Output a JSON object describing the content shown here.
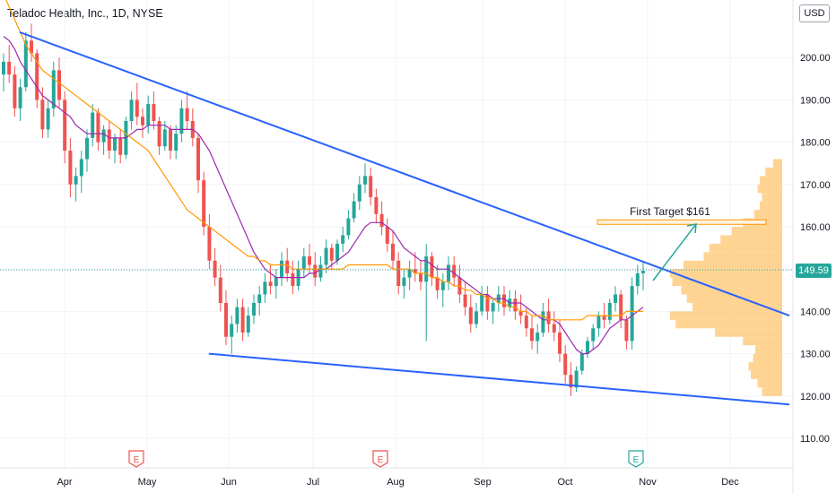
{
  "title": "Teladoc Health, Inc., 1D, NYSE",
  "currency_button": "USD",
  "last_price": "149.59",
  "annotation": "First Target $161",
  "earnings_marker": "E",
  "colors": {
    "up": "#26a69a",
    "down": "#ef5350",
    "trendline": "#2962ff",
    "ma_fast": "#9c27b0",
    "ma_slow": "#ff9800",
    "volume_profile": "#ffcc80",
    "target_box": "#ff9800",
    "arrow": "#26a69a"
  },
  "chart_data": {
    "type": "candlestick",
    "title": "Teladoc Health, Inc., 1D, NYSE",
    "x_ticks": [
      "Apr",
      "May",
      "Jun",
      "Jul",
      "Aug",
      "Sep",
      "Oct",
      "Nov",
      "Dec"
    ],
    "y_ticks": [
      110,
      120,
      130,
      140,
      150,
      160,
      170,
      180,
      190,
      200
    ],
    "ylim": [
      103,
      211
    ],
    "y_axis_side": "right",
    "price_line": 149.59,
    "candles": [
      [
        196,
        201,
        192,
        199
      ],
      [
        199,
        203,
        194,
        196
      ],
      [
        196,
        198,
        186,
        188
      ],
      [
        188,
        195,
        185,
        193
      ],
      [
        193,
        206,
        192,
        204
      ],
      [
        204,
        208,
        199,
        201
      ],
      [
        201,
        202,
        188,
        190
      ],
      [
        190,
        193,
        181,
        183
      ],
      [
        183,
        190,
        181,
        188
      ],
      [
        188,
        199,
        186,
        197
      ],
      [
        197,
        200,
        188,
        190
      ],
      [
        190,
        192,
        175,
        178
      ],
      [
        178,
        181,
        167,
        170
      ],
      [
        170,
        174,
        166,
        172
      ],
      [
        172,
        178,
        168,
        176
      ],
      [
        176,
        183,
        173,
        181
      ],
      [
        181,
        189,
        179,
        187
      ],
      [
        187,
        188,
        178,
        180
      ],
      [
        180,
        184,
        177,
        183
      ],
      [
        183,
        185,
        176,
        178
      ],
      [
        178,
        182,
        175,
        181
      ],
      [
        181,
        183,
        175,
        177
      ],
      [
        177,
        186,
        176,
        185
      ],
      [
        185,
        192,
        183,
        190
      ],
      [
        190,
        194,
        184,
        186
      ],
      [
        186,
        188,
        181,
        184
      ],
      [
        184,
        191,
        182,
        189
      ],
      [
        189,
        192,
        183,
        185
      ],
      [
        185,
        186,
        177,
        179
      ],
      [
        179,
        185,
        178,
        183
      ],
      [
        183,
        184,
        176,
        178
      ],
      [
        178,
        184,
        176,
        182
      ],
      [
        182,
        190,
        180,
        188
      ],
      [
        188,
        192,
        183,
        185
      ],
      [
        185,
        188,
        179,
        181
      ],
      [
        181,
        182,
        168,
        171
      ],
      [
        171,
        173,
        158,
        160
      ],
      [
        160,
        163,
        150,
        152
      ],
      [
        152,
        155,
        146,
        148
      ],
      [
        148,
        151,
        140,
        142
      ],
      [
        142,
        145,
        132,
        134
      ],
      [
        134,
        139,
        130,
        137
      ],
      [
        137,
        143,
        135,
        141
      ],
      [
        141,
        143,
        133,
        135
      ],
      [
        135,
        141,
        134,
        139
      ],
      [
        139,
        144,
        137,
        142
      ],
      [
        142,
        146,
        139,
        144
      ],
      [
        144,
        149,
        142,
        147
      ],
      [
        147,
        151,
        144,
        146
      ],
      [
        146,
        150,
        143,
        148
      ],
      [
        148,
        154,
        146,
        152
      ],
      [
        152,
        155,
        147,
        149
      ],
      [
        149,
        152,
        144,
        146
      ],
      [
        146,
        152,
        145,
        150
      ],
      [
        150,
        155,
        148,
        153
      ],
      [
        153,
        156,
        149,
        151
      ],
      [
        151,
        154,
        146,
        148
      ],
      [
        148,
        153,
        147,
        151
      ],
      [
        151,
        157,
        149,
        155
      ],
      [
        155,
        156,
        150,
        152
      ],
      [
        152,
        157,
        151,
        156
      ],
      [
        156,
        160,
        154,
        158
      ],
      [
        158,
        164,
        157,
        162
      ],
      [
        162,
        168,
        161,
        166
      ],
      [
        166,
        172,
        164,
        170
      ],
      [
        170,
        175,
        168,
        172
      ],
      [
        172,
        174,
        165,
        167
      ],
      [
        167,
        169,
        161,
        163
      ],
      [
        163,
        166,
        158,
        160
      ],
      [
        160,
        162,
        154,
        156
      ],
      [
        156,
        159,
        150,
        152
      ],
      [
        152,
        154,
        144,
        146
      ],
      [
        146,
        150,
        143,
        148
      ],
      [
        148,
        152,
        145,
        150
      ],
      [
        150,
        154,
        147,
        149
      ],
      [
        149,
        152,
        145,
        147
      ],
      [
        147,
        156,
        133,
        153
      ],
      [
        153,
        154,
        146,
        148
      ],
      [
        148,
        151,
        143,
        145
      ],
      [
        145,
        149,
        141,
        147
      ],
      [
        147,
        153,
        145,
        151
      ],
      [
        151,
        153,
        146,
        148
      ],
      [
        148,
        151,
        142,
        144
      ],
      [
        144,
        147,
        139,
        141
      ],
      [
        141,
        144,
        135,
        137
      ],
      [
        137,
        142,
        136,
        140
      ],
      [
        140,
        146,
        139,
        144
      ],
      [
        144,
        146,
        138,
        140
      ],
      [
        140,
        143,
        137,
        142
      ],
      [
        142,
        146,
        140,
        144
      ],
      [
        144,
        146,
        139,
        141
      ],
      [
        141,
        145,
        140,
        143
      ],
      [
        143,
        145,
        138,
        140
      ],
      [
        140,
        144,
        137,
        139
      ],
      [
        139,
        141,
        134,
        136
      ],
      [
        136,
        139,
        131,
        133
      ],
      [
        133,
        137,
        130,
        135
      ],
      [
        135,
        142,
        134,
        140
      ],
      [
        140,
        143,
        135,
        137
      ],
      [
        137,
        140,
        133,
        135
      ],
      [
        135,
        138,
        128,
        130
      ],
      [
        130,
        132,
        123,
        125
      ],
      [
        125,
        128,
        120,
        122
      ],
      [
        122,
        127,
        121,
        126
      ],
      [
        126,
        131,
        125,
        130
      ],
      [
        130,
        134,
        129,
        133
      ],
      [
        133,
        137,
        131,
        136
      ],
      [
        136,
        140,
        134,
        139
      ],
      [
        139,
        142,
        136,
        138
      ],
      [
        138,
        143,
        137,
        142
      ],
      [
        142,
        146,
        140,
        144
      ],
      [
        144,
        145,
        136,
        138
      ],
      [
        138,
        139,
        131,
        133
      ],
      [
        133,
        148,
        131,
        146
      ],
      [
        146,
        151,
        144,
        149
      ],
      [
        149,
        152,
        145,
        149.59
      ]
    ],
    "series": [
      {
        "name": "",
        "kind": "moving-average-fast",
        "values": [
          205,
          204,
          202,
          199,
          197,
          195,
          193,
          191,
          190,
          189,
          188,
          187,
          186,
          184,
          183,
          182,
          182,
          182,
          182,
          181,
          181,
          181,
          181,
          182,
          183,
          183,
          184,
          184,
          184,
          184,
          183,
          183,
          183,
          183,
          183,
          182,
          180,
          178,
          175,
          172,
          169,
          166,
          163,
          160,
          157,
          154,
          152,
          150,
          149,
          148,
          148,
          148,
          148,
          148,
          148,
          149,
          149,
          150,
          150,
          151,
          152,
          153,
          154,
          156,
          158,
          160,
          161,
          161,
          161,
          160,
          159,
          157,
          155,
          154,
          153,
          152,
          152,
          151,
          150,
          150,
          150,
          149,
          148,
          147,
          146,
          145,
          144,
          144,
          143,
          143,
          143,
          142,
          142,
          142,
          141,
          140,
          139,
          138,
          138,
          138,
          137,
          135,
          133,
          131,
          130,
          130,
          131,
          132,
          134,
          136,
          137,
          138,
          138,
          139,
          140,
          141
        ]
      },
      {
        "name": "",
        "kind": "moving-average-slow",
        "values": [
          215,
          212,
          209,
          206,
          203,
          201,
          199,
          197,
          196,
          195,
          194,
          193,
          192,
          191,
          190,
          189,
          188,
          187,
          186,
          185,
          184,
          183,
          182,
          181,
          180,
          179,
          178,
          176,
          174,
          172,
          170,
          168,
          166,
          164,
          163,
          162,
          161,
          160,
          159,
          158,
          157,
          156,
          155,
          154,
          153,
          153,
          152,
          152,
          151,
          151,
          151,
          151,
          150,
          150,
          150,
          150,
          150,
          150,
          150,
          150,
          150,
          150,
          151,
          151,
          151,
          151,
          151,
          151,
          151,
          151,
          150,
          150,
          150,
          150,
          149,
          149,
          149,
          148,
          148,
          147,
          147,
          146,
          146,
          145,
          145,
          144,
          144,
          143,
          143,
          142,
          142,
          141,
          141,
          140,
          140,
          139,
          139,
          139,
          138,
          138,
          138,
          138,
          138,
          138,
          138,
          139,
          139,
          139,
          139,
          139,
          139,
          139,
          140,
          140,
          140,
          140
        ]
      }
    ],
    "trendlines": [
      {
        "name": "",
        "from": [
          0,
          206
        ],
        "to": [
          140,
          139
        ]
      },
      {
        "name": "",
        "from": [
          34,
          130
        ],
        "to": [
          140,
          118
        ]
      }
    ],
    "target_level": 161,
    "earnings_markers_at": [
      "May",
      "Aug",
      "Nov"
    ],
    "volume_profile": {
      "price_levels": [
        121,
        123,
        125,
        127,
        129,
        131,
        133,
        135,
        137,
        139,
        141,
        143,
        145,
        147,
        149,
        151,
        153,
        155,
        157,
        159,
        161,
        163,
        165,
        167,
        169,
        171,
        173,
        175
      ],
      "volumes": [
        18,
        22,
        28,
        30,
        26,
        24,
        35,
        60,
        95,
        100,
        80,
        85,
        90,
        98,
        100,
        88,
        70,
        65,
        55,
        45,
        35,
        25,
        20,
        18,
        22,
        20,
        15,
        8
      ]
    }
  }
}
